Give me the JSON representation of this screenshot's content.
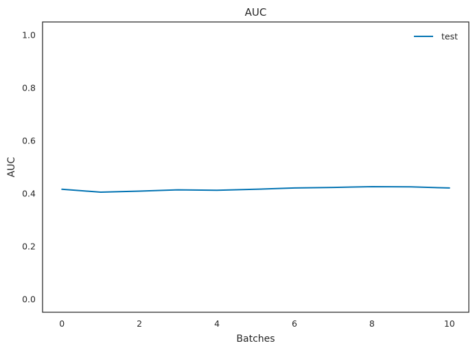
{
  "chart_data": {
    "type": "line",
    "title": "AUC",
    "xlabel": "Batches",
    "ylabel": "AUC",
    "xlim": [
      -0.5,
      10.5
    ],
    "ylim": [
      -0.05,
      1.05
    ],
    "xticks": [
      0,
      2,
      4,
      6,
      8,
      10
    ],
    "xtick_labels": [
      "0",
      "2",
      "4",
      "6",
      "8",
      "10"
    ],
    "yticks": [
      0.0,
      0.2,
      0.4,
      0.6,
      0.8,
      1.0
    ],
    "ytick_labels": [
      "0.0",
      "0.2",
      "0.4",
      "0.6",
      "0.8",
      "1.0"
    ],
    "grid": false,
    "legend_position": "top-right",
    "series": [
      {
        "name": "test",
        "color": "#0072b2",
        "x": [
          0,
          1,
          2,
          3,
          4,
          5,
          6,
          7,
          8,
          9,
          10
        ],
        "y": [
          0.416,
          0.405,
          0.409,
          0.414,
          0.412,
          0.416,
          0.421,
          0.423,
          0.426,
          0.425,
          0.421
        ]
      }
    ]
  }
}
